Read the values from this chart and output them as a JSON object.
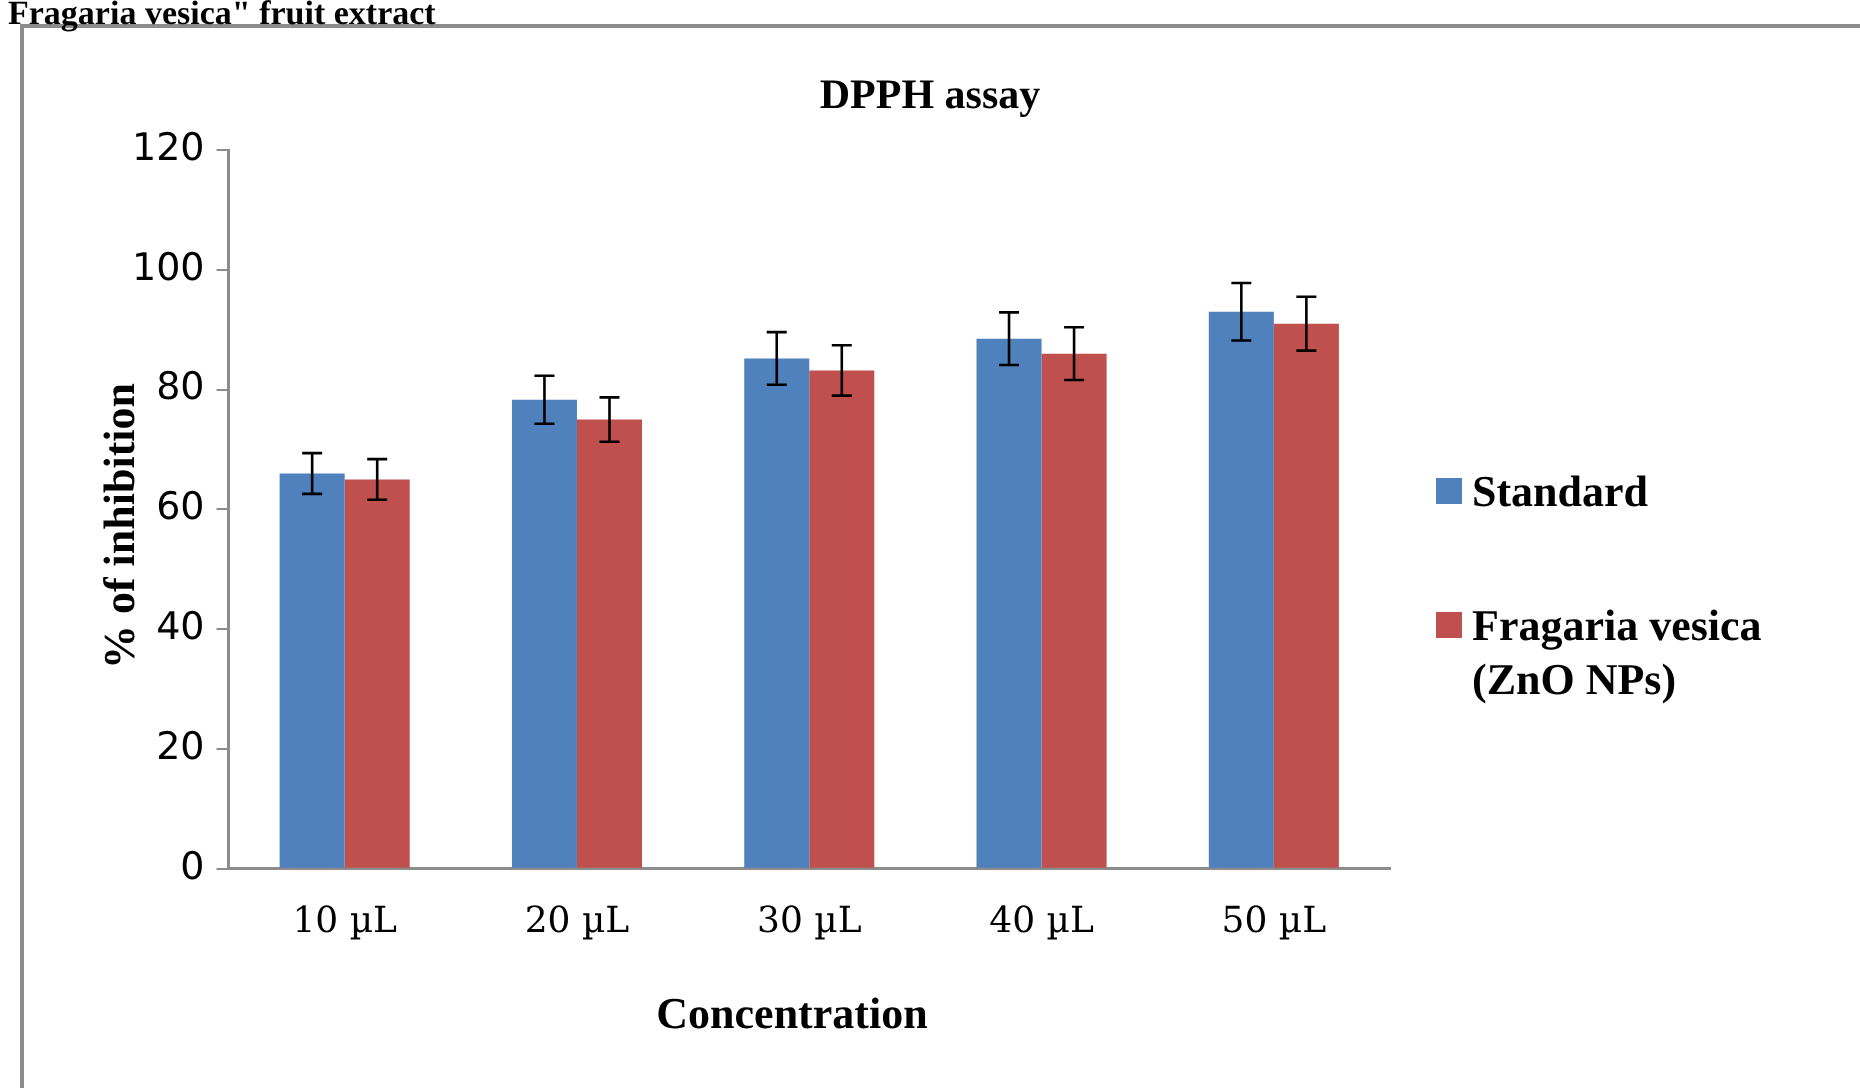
{
  "chart_data": {
    "type": "bar",
    "title": "DPPH assay",
    "xlabel": "Concentration",
    "ylabel": "% of inhibition",
    "annotations": [
      "Fragaria vesica\" fruit extract"
    ],
    "categories": [
      "10 µL",
      "20 µL",
      "30 µL",
      "40 µL",
      "50 µL"
    ],
    "series": [
      {
        "name": "Standard",
        "color": "#4f81bd",
        "values": [
          66,
          78.3,
          85.2,
          88.5,
          93
        ],
        "errors": [
          3.4,
          4,
          4.4,
          4.4,
          4.8
        ]
      },
      {
        "name": "Fragaria vesica (ZnO NPs)",
        "color": "#c0504d",
        "values": [
          65,
          75,
          83.2,
          86,
          91
        ],
        "errors": [
          3.4,
          3.7,
          4.2,
          4.4,
          4.5
        ]
      }
    ],
    "ylim": [
      0,
      120
    ],
    "yticks": [
      0,
      20,
      40,
      60,
      80,
      100,
      120
    ],
    "grid": false,
    "legend": "right"
  }
}
